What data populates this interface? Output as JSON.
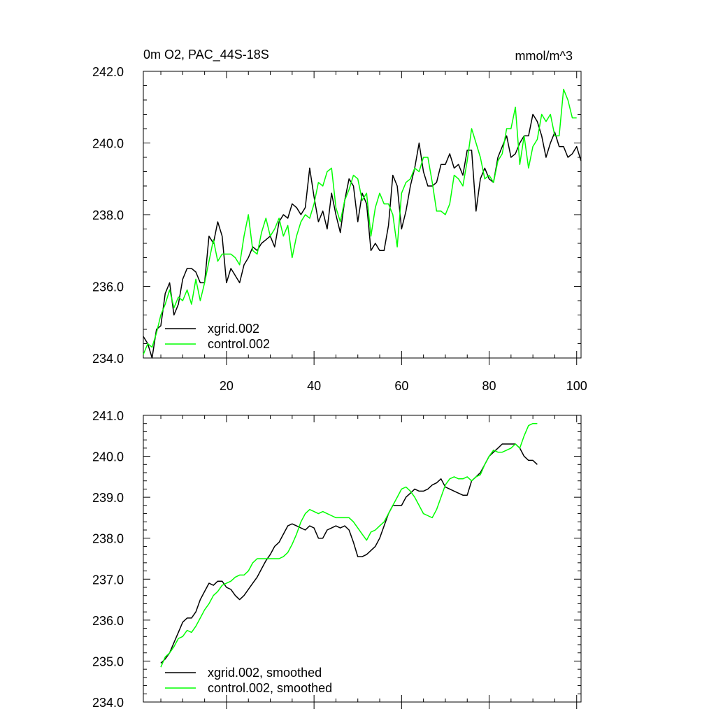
{
  "figure": {
    "title_left": "0m O2, PAC_44S-18S",
    "title_right": "mmol/m^3"
  },
  "chart_data": [
    {
      "type": "line",
      "title": "0m O2, PAC_44S-18S",
      "units": "mmol/m^3",
      "xlabel": "",
      "ylabel": "",
      "xlim": [
        1,
        101
      ],
      "ylim": [
        234.0,
        242.0
      ],
      "xticks": [
        20,
        40,
        60,
        80,
        100
      ],
      "xtick_labels": [
        "20",
        "40",
        "60",
        "80",
        "100"
      ],
      "yticks": [
        234.0,
        236.0,
        238.0,
        240.0,
        242.0
      ],
      "ytick_labels": [
        "234.0",
        "236.0",
        "238.0",
        "240.0",
        "242.0"
      ],
      "legend_position": "bottom-left",
      "series": [
        {
          "name": "xgrid.002",
          "color": "#000000",
          "x_start": 1,
          "values": [
            234.6,
            234.4,
            234.0,
            234.8,
            234.9,
            235.8,
            236.1,
            235.2,
            235.5,
            236.2,
            236.5,
            236.5,
            236.4,
            236.1,
            236.1,
            237.4,
            237.2,
            237.8,
            237.4,
            236.1,
            236.5,
            236.3,
            236.1,
            236.6,
            236.8,
            237.1,
            237.0,
            237.2,
            237.3,
            237.4,
            237.1,
            237.8,
            238.0,
            237.9,
            238.3,
            238.2,
            238.0,
            238.2,
            239.3,
            238.5,
            237.8,
            238.1,
            237.6,
            238.6,
            238.0,
            237.5,
            238.4,
            239.0,
            238.8,
            237.8,
            238.6,
            238.3,
            237.0,
            237.2,
            237.0,
            237.0,
            237.7,
            239.1,
            238.8,
            237.6,
            238.1,
            238.8,
            239.3,
            240.0,
            239.2,
            238.8,
            238.8,
            238.9,
            239.4,
            239.4,
            239.7,
            239.3,
            239.4,
            239.1,
            239.8,
            239.8,
            238.1,
            239.0,
            239.3,
            239.0,
            238.9,
            239.6,
            239.9,
            240.2,
            239.6,
            239.7,
            240.0,
            240.2,
            240.2,
            240.8,
            240.6,
            240.2,
            239.6,
            240.0,
            240.3,
            239.9,
            239.9,
            239.6,
            239.7,
            239.9,
            239.5
          ]
        },
        {
          "name": "control.002",
          "color": "#00ff00",
          "x_start": 1,
          "values": [
            234.1,
            234.4,
            234.3,
            234.7,
            235.2,
            235.5,
            235.9,
            235.4,
            235.7,
            235.6,
            235.9,
            235.5,
            236.2,
            235.6,
            236.1,
            236.7,
            237.3,
            236.7,
            236.9,
            236.9,
            236.9,
            236.8,
            236.6,
            237.4,
            238.0,
            237.0,
            236.9,
            237.5,
            237.9,
            237.4,
            237.6,
            237.9,
            237.4,
            237.7,
            236.8,
            237.4,
            237.8,
            238.0,
            237.9,
            238.3,
            238.9,
            238.8,
            239.2,
            239.3,
            238.2,
            237.8,
            238.4,
            238.7,
            239.1,
            239.0,
            238.4,
            238.6,
            237.4,
            238.2,
            238.6,
            238.3,
            238.3,
            238.0,
            237.1,
            238.6,
            238.9,
            239.0,
            239.3,
            239.2,
            239.6,
            239.6,
            238.9,
            238.1,
            238.1,
            238.0,
            238.3,
            239.1,
            239.0,
            238.8,
            239.5,
            240.4,
            240.0,
            239.6,
            239.0,
            239.1,
            238.9,
            239.5,
            239.7,
            240.4,
            240.4,
            241.0,
            239.4,
            240.2,
            239.3,
            239.9,
            240.1,
            240.8,
            240.6,
            240.8,
            240.2,
            240.2,
            241.5,
            241.2,
            240.7,
            240.7
          ]
        }
      ]
    },
    {
      "type": "line",
      "title": "",
      "xlabel": "",
      "ylabel": "",
      "xlim": [
        1,
        101
      ],
      "ylim": [
        234.0,
        241.0
      ],
      "xticks": [
        20,
        40,
        60,
        80,
        100
      ],
      "xtick_labels": [
        "",
        "",
        "",
        "",
        ""
      ],
      "yticks": [
        234.0,
        235.0,
        236.0,
        237.0,
        238.0,
        239.0,
        240.0,
        241.0
      ],
      "ytick_labels": [
        "234.0",
        "235.0",
        "236.0",
        "237.0",
        "238.0",
        "239.0",
        "240.0",
        "241.0"
      ],
      "legend_position": "bottom-left",
      "series": [
        {
          "name": "xgrid.002, smoothed",
          "color": "#000000",
          "x_start": 5,
          "values": [
            234.95,
            235.05,
            235.2,
            235.45,
            235.7,
            235.95,
            236.05,
            236.05,
            236.2,
            236.5,
            236.7,
            236.9,
            236.85,
            236.95,
            236.95,
            236.8,
            236.75,
            236.6,
            236.5,
            236.6,
            236.75,
            236.9,
            237.05,
            237.25,
            237.45,
            237.6,
            237.8,
            237.9,
            238.1,
            238.3,
            238.35,
            238.3,
            238.25,
            238.2,
            238.3,
            238.25,
            238.0,
            238.0,
            238.2,
            238.25,
            238.3,
            238.25,
            238.3,
            238.2,
            237.9,
            237.55,
            237.55,
            237.6,
            237.7,
            237.8,
            238.0,
            238.3,
            238.6,
            238.8,
            238.8,
            238.8,
            239.0,
            239.1,
            239.2,
            239.15,
            239.15,
            239.2,
            239.3,
            239.35,
            239.45,
            239.25,
            239.2,
            239.15,
            239.1,
            239.05,
            239.05,
            239.4,
            239.5,
            239.6,
            239.8,
            240.0,
            240.1,
            240.2,
            240.3,
            240.3,
            240.3,
            240.3,
            240.2,
            240.0,
            239.9,
            239.9,
            239.8
          ]
        },
        {
          "name": "control.002, smoothed",
          "color": "#00ff00",
          "x_start": 5,
          "values": [
            234.85,
            235.1,
            235.2,
            235.35,
            235.55,
            235.6,
            235.75,
            235.7,
            235.85,
            236.05,
            236.25,
            236.4,
            236.6,
            236.7,
            236.85,
            236.9,
            236.95,
            237.05,
            237.1,
            237.1,
            237.2,
            237.4,
            237.5,
            237.5,
            237.5,
            237.5,
            237.5,
            237.5,
            237.55,
            237.65,
            237.85,
            238.1,
            238.4,
            238.6,
            238.7,
            238.65,
            238.6,
            238.65,
            238.6,
            238.55,
            238.5,
            238.5,
            238.5,
            238.5,
            238.4,
            238.25,
            238.1,
            237.95,
            238.15,
            238.2,
            238.3,
            238.4,
            238.6,
            238.8,
            239.0,
            239.2,
            239.25,
            239.15,
            239.0,
            238.8,
            238.6,
            238.55,
            238.5,
            238.7,
            239.0,
            239.3,
            239.45,
            239.5,
            239.45,
            239.45,
            239.5,
            239.4,
            239.5,
            239.55,
            239.8,
            240.0,
            240.15,
            240.1,
            240.1,
            240.15,
            240.2,
            240.3,
            240.2,
            240.5,
            240.75,
            240.8,
            240.8
          ]
        }
      ]
    }
  ]
}
